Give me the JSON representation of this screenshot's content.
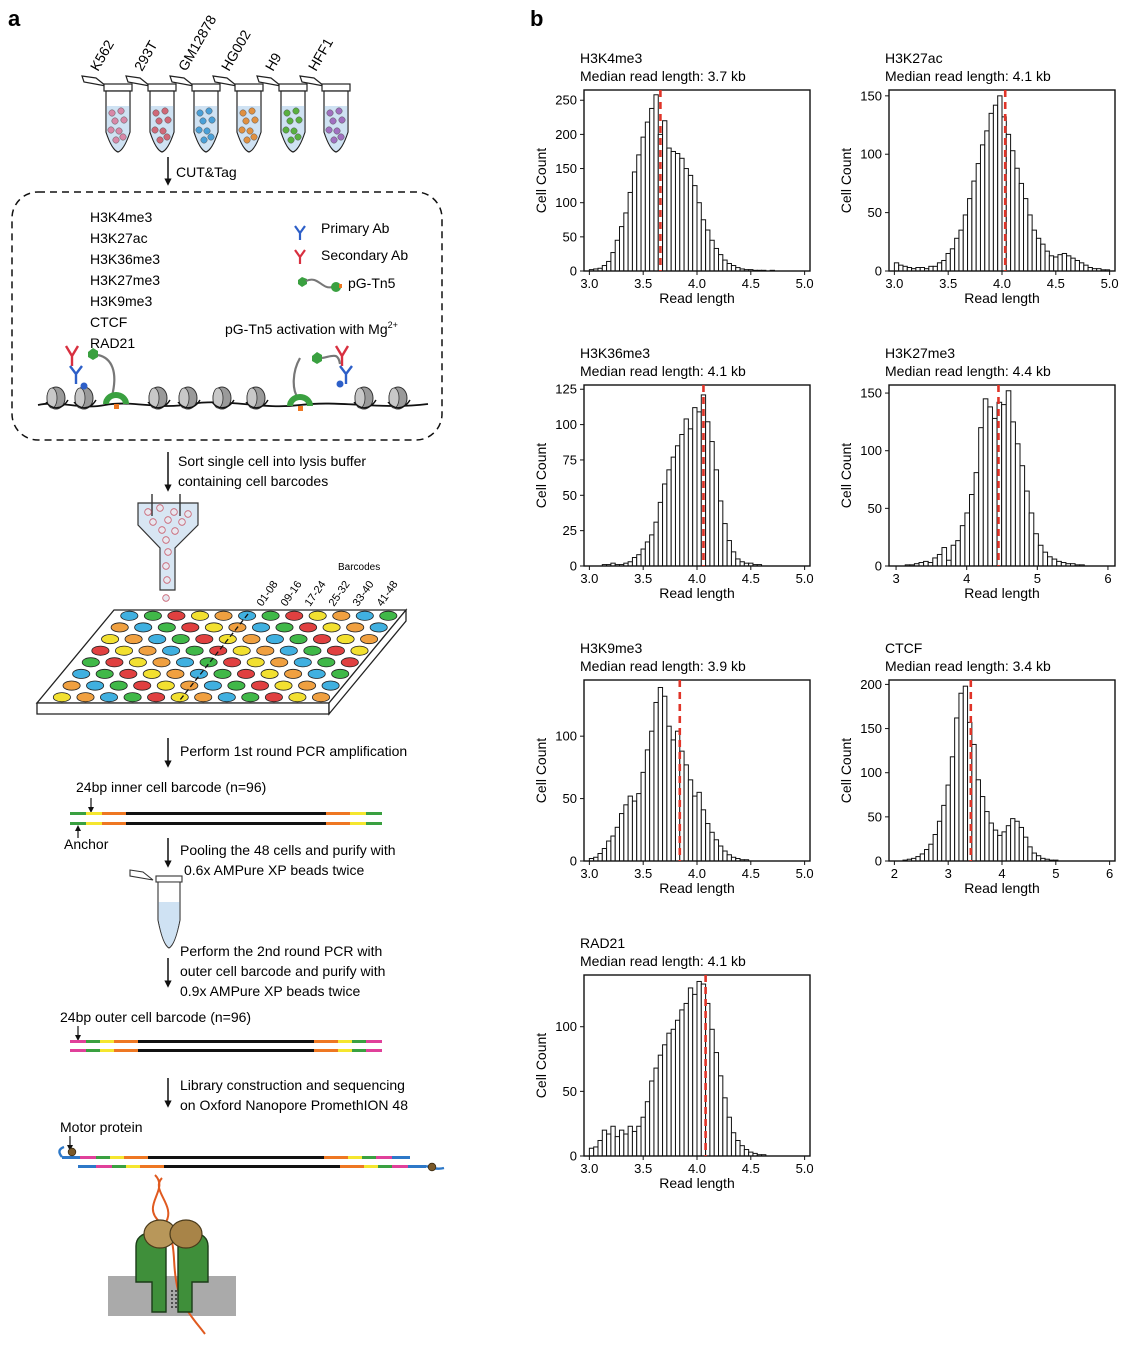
{
  "panel_a": {
    "label": "a",
    "cell_lines": [
      "K562",
      "293T",
      "GM12878",
      "HG002",
      "H9",
      "HFF1"
    ],
    "cell_line_colors": [
      "#d888a8",
      "#d06878",
      "#4aa0d8",
      "#e09040",
      "#58b040",
      "#a070c0"
    ],
    "step_cuttag": "CUT&Tag",
    "targets": [
      "H3K4me3",
      "H3K27ac",
      "H3K36me3",
      "H3K27me3",
      "H3K9me3",
      "CTCF",
      "RAD21"
    ],
    "legend": {
      "primary": "Primary Ab",
      "secondary": "Secondary Ab",
      "ptn5": "pG-Tn5"
    },
    "activation_text": "pG-Tn5 activation with Mg",
    "activation_sup": "2+",
    "step_sort_1": "Sort single cell into lysis buffer",
    "step_sort_2": "containing cell barcodes",
    "barcodes_title": "Barcodes",
    "barcode_groups": [
      "01-08",
      "09-16",
      "17-24",
      "25-32",
      "33-40",
      "41-48"
    ],
    "step_pcr1": "Perform 1st round PCR amplification",
    "inner_barcode": "24bp inner cell barcode (n=96)",
    "anchor": "Anchor",
    "step_pool_1": "Pooling the 48 cells and purify with",
    "step_pool_2": "0.6x AMPure XP beads twice",
    "step_pcr2_1": "Perform the 2nd round PCR with",
    "step_pcr2_2": "outer cell barcode and purify with",
    "step_pcr2_3": "0.9x AMPure XP beads twice",
    "outer_barcode": "24bp outer cell barcode (n=96)",
    "step_lib_1": "Library construction and sequencing",
    "step_lib_2": "on Oxford Nanopore PromethION 48",
    "motor_protein": "Motor protein",
    "colors": {
      "well_yellow": "#f2e030",
      "well_orange": "#f0a040",
      "well_blue": "#40b0e0",
      "well_green": "#40b848",
      "well_red": "#e04040",
      "seq_black": "#111111",
      "seq_orange": "#ee7722",
      "seq_yellow": "#f5e62e",
      "seq_green": "#3aa040",
      "seq_pink": "#e0409a",
      "seq_blue": "#2d78c8"
    }
  },
  "panel_b": {
    "label": "b"
  },
  "chart_data": [
    {
      "type": "bar",
      "subtype": "histogram",
      "title": "H3K4me3",
      "subtitle": "Median read length: 3.7 kb",
      "xlabel": "Read length",
      "ylabel": "Cell Count",
      "xlim": [
        2.95,
        5.05
      ],
      "ylim": [
        0,
        265
      ],
      "xticks": [
        3.0,
        3.5,
        4.0,
        4.5,
        5.0
      ],
      "xtick_labels": [
        "3.0",
        "3.5",
        "4.0",
        "4.5",
        "5.0"
      ],
      "yticks": [
        0,
        50,
        100,
        150,
        200,
        250
      ],
      "median": 3.66,
      "bin_start": 3.0,
      "bin_width": 0.04,
      "values": [
        2,
        3,
        4,
        8,
        14,
        27,
        45,
        65,
        85,
        115,
        145,
        170,
        196,
        218,
        238,
        258,
        200,
        220,
        180,
        175,
        172,
        165,
        150,
        140,
        125,
        100,
        75,
        60,
        45,
        33,
        24,
        16,
        11,
        8,
        5,
        3,
        2,
        2,
        1,
        1,
        1,
        0,
        1,
        0,
        0,
        0,
        0,
        0,
        0,
        0
      ]
    },
    {
      "type": "bar",
      "subtype": "histogram",
      "title": "H3K27ac",
      "subtitle": "Median read length: 4.1 kb",
      "xlabel": "Read length",
      "ylabel": "Cell Count",
      "xlim": [
        2.95,
        5.05
      ],
      "ylim": [
        0,
        155
      ],
      "xticks": [
        3.0,
        3.5,
        4.0,
        4.5,
        5.0
      ],
      "xtick_labels": [
        "3.0",
        "3.5",
        "4.0",
        "4.5",
        "5.0"
      ],
      "yticks": [
        0,
        50,
        100,
        150
      ],
      "median": 4.03,
      "bin_start": 3.0,
      "bin_width": 0.04,
      "values": [
        7,
        5,
        4,
        3,
        2,
        3,
        3,
        2,
        4,
        4,
        7,
        9,
        15,
        19,
        28,
        35,
        48,
        62,
        77,
        92,
        108,
        120,
        135,
        142,
        150,
        132,
        117,
        103,
        88,
        75,
        62,
        48,
        35,
        28,
        23,
        17,
        13,
        12,
        14,
        15,
        13,
        11,
        9,
        7,
        5,
        3,
        2,
        2,
        1,
        1
      ]
    },
    {
      "type": "bar",
      "subtype": "histogram",
      "title": "H3K36me3",
      "subtitle": "Median read length: 4.1 kb",
      "xlabel": "Read length",
      "ylabel": "Cell Count",
      "xlim": [
        2.95,
        5.05
      ],
      "ylim": [
        0,
        128
      ],
      "xticks": [
        3.0,
        3.5,
        4.0,
        4.5,
        5.0
      ],
      "xtick_labels": [
        "3.0",
        "3.5",
        "4.0",
        "4.5",
        "5.0"
      ],
      "yticks": [
        0,
        25,
        50,
        75,
        100,
        125
      ],
      "median": 4.06,
      "bin_start": 3.0,
      "bin_width": 0.04,
      "values": [
        0,
        0,
        0,
        1,
        1,
        2,
        1,
        1,
        2,
        3,
        6,
        8,
        12,
        17,
        22,
        31,
        45,
        58,
        68,
        77,
        85,
        93,
        104,
        97,
        112,
        109,
        121,
        102,
        88,
        68,
        46,
        30,
        18,
        10,
        5,
        3,
        2,
        2,
        1,
        1,
        0,
        0,
        0,
        0,
        0,
        0,
        0,
        0,
        0,
        0
      ]
    },
    {
      "type": "bar",
      "subtype": "histogram",
      "title": "H3K27me3",
      "subtitle": "Median read length: 4.4 kb",
      "xlabel": "Read length",
      "ylabel": "Cell Count",
      "xlim": [
        2.9,
        6.1
      ],
      "ylim": [
        0,
        157
      ],
      "xticks": [
        3,
        4,
        5,
        6
      ],
      "xtick_labels": [
        "3",
        "4",
        "5",
        "6"
      ],
      "yticks": [
        0,
        50,
        100,
        150
      ],
      "median": 4.45,
      "bin_start": 3.0,
      "bin_width": 0.065,
      "values": [
        0,
        0,
        1,
        1,
        2,
        3,
        4,
        3,
        7,
        10,
        16,
        5,
        18,
        22,
        35,
        46,
        62,
        81,
        120,
        145,
        138,
        128,
        142,
        140,
        152,
        125,
        106,
        87,
        65,
        46,
        28,
        18,
        12,
        8,
        6,
        4,
        3,
        2,
        2,
        1,
        1,
        0,
        0,
        0,
        0,
        0,
        0,
        0
      ]
    },
    {
      "type": "bar",
      "subtype": "histogram",
      "title": "H3K9me3",
      "subtitle": "Median read length: 3.9 kb",
      "xlabel": "Read length",
      "ylabel": "Cell Count",
      "xlim": [
        2.95,
        5.05
      ],
      "ylim": [
        0,
        145
      ],
      "xticks": [
        3.0,
        3.5,
        4.0,
        4.5,
        5.0
      ],
      "xtick_labels": [
        "3.0",
        "3.5",
        "4.0",
        "4.5",
        "5.0"
      ],
      "yticks": [
        0,
        50,
        100
      ],
      "median": 3.84,
      "bin_start": 3.0,
      "bin_width": 0.04,
      "values": [
        2,
        3,
        6,
        10,
        16,
        20,
        27,
        38,
        45,
        52,
        48,
        54,
        71,
        89,
        104,
        127,
        139,
        132,
        108,
        97,
        104,
        88,
        77,
        65,
        52,
        55,
        41,
        30,
        23,
        17,
        12,
        8,
        5,
        3,
        2,
        1,
        1,
        0,
        0,
        0,
        0,
        0,
        0,
        0,
        0,
        0,
        0,
        0,
        0,
        0
      ]
    },
    {
      "type": "bar",
      "subtype": "histogram",
      "title": "CTCF",
      "subtitle": "Median read length: 3.4 kb",
      "xlabel": "Read length",
      "ylabel": "Cell Count",
      "xlim": [
        1.9,
        6.1
      ],
      "ylim": [
        0,
        205
      ],
      "xticks": [
        2,
        3,
        4,
        5,
        6
      ],
      "xtick_labels": [
        "2",
        "3",
        "4",
        "5",
        "6"
      ],
      "yticks": [
        0,
        50,
        100,
        150,
        200
      ],
      "median": 3.42,
      "bin_start": 2.0,
      "bin_width": 0.08,
      "values": [
        0,
        0,
        1,
        2,
        3,
        5,
        8,
        13,
        19,
        30,
        45,
        63,
        86,
        118,
        162,
        190,
        198,
        157,
        132,
        92,
        73,
        56,
        43,
        35,
        29,
        33,
        40,
        48,
        45,
        38,
        27,
        16,
        9,
        6,
        3,
        2,
        1,
        1,
        0,
        0,
        0,
        0,
        0,
        0,
        0,
        0,
        0,
        0,
        0,
        0
      ]
    },
    {
      "type": "bar",
      "subtype": "histogram",
      "title": "RAD21",
      "subtitle": "Median read length: 4.1 kb",
      "xlabel": "Read length",
      "ylabel": "Cell Count",
      "xlim": [
        2.95,
        5.05
      ],
      "ylim": [
        0,
        140
      ],
      "xticks": [
        3.0,
        3.5,
        4.0,
        4.5,
        5.0
      ],
      "xtick_labels": [
        "3.0",
        "3.5",
        "4.0",
        "4.5",
        "5.0"
      ],
      "yticks": [
        0,
        50,
        100
      ],
      "median": 4.08,
      "bin_start": 3.0,
      "bin_width": 0.04,
      "values": [
        6,
        7,
        12,
        20,
        17,
        23,
        15,
        20,
        17,
        23,
        19,
        23,
        30,
        42,
        58,
        68,
        78,
        86,
        95,
        98,
        105,
        113,
        118,
        130,
        125,
        135,
        133,
        118,
        98,
        80,
        62,
        45,
        30,
        18,
        12,
        8,
        5,
        3,
        2,
        1,
        1,
        0,
        0,
        0,
        0,
        0,
        0,
        0,
        0,
        0
      ]
    }
  ]
}
